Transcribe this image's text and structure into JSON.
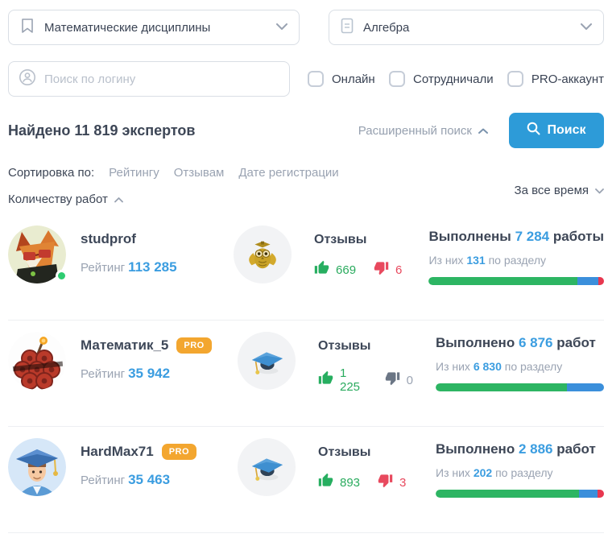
{
  "colors": {
    "accent_blue": "#2d9bd8",
    "number_blue": "#3b9de0",
    "green": "#2db563",
    "red": "#e8374f",
    "pro_badge": "#f3a62f",
    "text_dark": "#3d4656",
    "text_gray": "#9aa3b2"
  },
  "filters": {
    "discipline_select": {
      "value": "Математические дисциплины",
      "icon": "bookmark-icon"
    },
    "subject_select": {
      "value": "Алгебра",
      "icon": "document-icon"
    },
    "search": {
      "placeholder": "Поиск по логину",
      "icon": "person-circle-icon"
    },
    "checkboxes": [
      {
        "label": "Онлайн",
        "checked": false
      },
      {
        "label": "Сотрудничали",
        "checked": false
      },
      {
        "label": "PRO-аккаунт",
        "checked": false
      }
    ]
  },
  "results_header": {
    "found_prefix": "Найдено",
    "found_count": "11 819",
    "found_suffix": "экспертов",
    "advanced_search_label": "Расширенный поиск",
    "search_button_label": "Поиск"
  },
  "sorting": {
    "label": "Сортировка по:",
    "options": [
      "Рейтингу",
      "Отзывам",
      "Дате регистрации"
    ],
    "active_option": "Количеству работ",
    "period_label": "За все время"
  },
  "experts": [
    {
      "username": "studprof",
      "pro": false,
      "online": true,
      "avatar": "fox-avatar",
      "rating_label": "Рейтинг",
      "rating": "113 285",
      "badge_icon": "owl-icon",
      "reviews_label": "Отзывы",
      "likes": "669",
      "dislikes": "6",
      "dislikes_zero": false,
      "works_prefix": "Выполнены",
      "works_count": "7 284",
      "works_suffix": "работы",
      "section_prefix": "Из них",
      "section_count": "131",
      "section_suffix": "по разделу",
      "bar": {
        "green": 85,
        "blue": 12,
        "red": 3
      }
    },
    {
      "username": "Математик_5",
      "pro": true,
      "online": false,
      "avatar": "dynamite-avatar",
      "rating_label": "Рейтинг",
      "rating": "35 942",
      "badge_icon": "graduation-cap-icon",
      "reviews_label": "Отзывы",
      "likes": "1 225",
      "dislikes": "0",
      "dislikes_zero": true,
      "works_prefix": "Выполнено",
      "works_count": "6 876",
      "works_suffix": "работ",
      "section_prefix": "Из них",
      "section_count": "6 830",
      "section_suffix": "по разделу",
      "bar": {
        "green": 78,
        "blue": 22,
        "red": 0
      }
    },
    {
      "username": "HardMax71",
      "pro": true,
      "online": false,
      "avatar": "student-man-avatar",
      "rating_label": "Рейтинг",
      "rating": "35 463",
      "badge_icon": "graduation-cap-icon",
      "reviews_label": "Отзывы",
      "likes": "893",
      "dislikes": "3",
      "dislikes_zero": false,
      "works_prefix": "Выполнено",
      "works_count": "2 886",
      "works_suffix": "работ",
      "section_prefix": "Из них",
      "section_count": "202",
      "section_suffix": "по разделу",
      "bar": {
        "green": 85,
        "blue": 11,
        "red": 4
      }
    }
  ]
}
